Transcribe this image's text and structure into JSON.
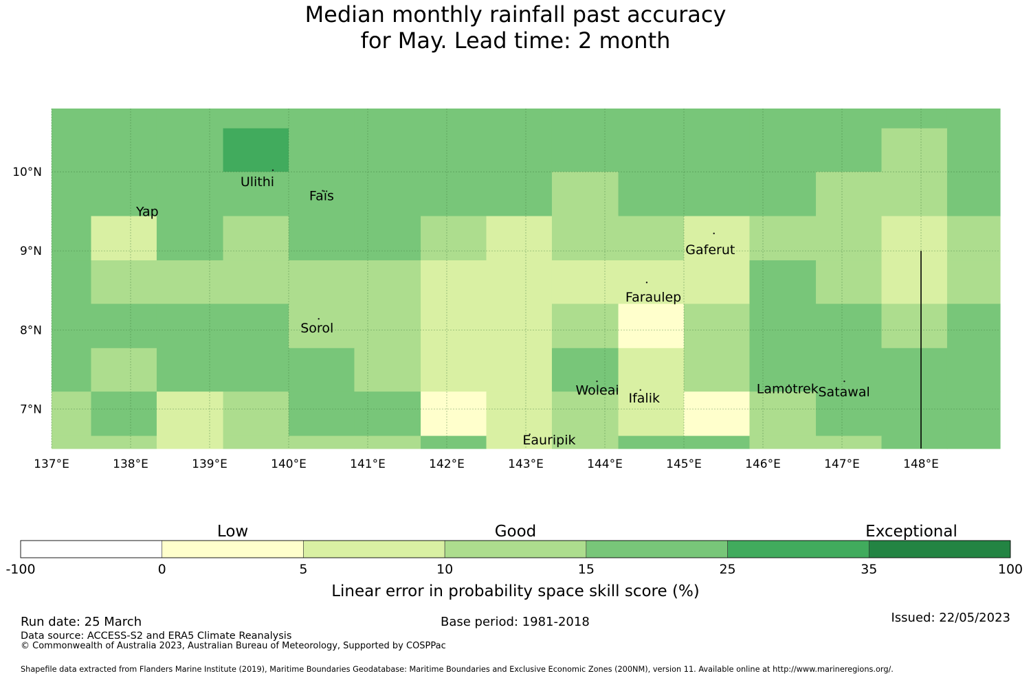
{
  "title": {
    "line1": "Median monthly rainfall past accuracy",
    "line2": "for May. Lead time: 2 month"
  },
  "map": {
    "lon_range": [
      137,
      149
    ],
    "lat_range": [
      6.5,
      10.8
    ],
    "lon_ticks": [
      {
        "value": 137,
        "label": "137°E"
      },
      {
        "value": 138,
        "label": "138°E"
      },
      {
        "value": 139,
        "label": "139°E"
      },
      {
        "value": 140,
        "label": "140°E"
      },
      {
        "value": 141,
        "label": "141°E"
      },
      {
        "value": 142,
        "label": "142°E"
      },
      {
        "value": 143,
        "label": "143°E"
      },
      {
        "value": 144,
        "label": "144°E"
      },
      {
        "value": 145,
        "label": "145°E"
      },
      {
        "value": 146,
        "label": "146°E"
      },
      {
        "value": 147,
        "label": "147°E"
      },
      {
        "value": 148,
        "label": "148°E"
      }
    ],
    "lat_ticks": [
      {
        "value": 10,
        "label": "10°N"
      },
      {
        "value": 9,
        "label": "9°N"
      },
      {
        "value": 8,
        "label": "8°N"
      },
      {
        "value": 7,
        "label": "7°N"
      }
    ],
    "grid_rows_lat": [
      10.8,
      10.55,
      10.0,
      9.44,
      8.88,
      8.33,
      7.77,
      7.22,
      6.66,
      6.5
    ],
    "grid_lon_edges": [
      137.0,
      137.5,
      138.33,
      139.17,
      140.0,
      140.83,
      141.67,
      142.5,
      143.33,
      144.17,
      145.0,
      145.83,
      146.67,
      147.5,
      148.33,
      149.0
    ],
    "cell_classes": [
      [
        4,
        4,
        4,
        4,
        4,
        4,
        4,
        4,
        4,
        4,
        4,
        4,
        4,
        4,
        4
      ],
      [
        4,
        4,
        4,
        5,
        4,
        4,
        4,
        4,
        4,
        4,
        4,
        4,
        4,
        3,
        4
      ],
      [
        4,
        4,
        4,
        4,
        4,
        4,
        4,
        4,
        3,
        4,
        4,
        4,
        3,
        3,
        4
      ],
      [
        4,
        2,
        4,
        3,
        4,
        4,
        3,
        2,
        3,
        3,
        2,
        3,
        3,
        2,
        3
      ],
      [
        4,
        3,
        3,
        3,
        3,
        3,
        2,
        2,
        2,
        2,
        2,
        4,
        3,
        2,
        3
      ],
      [
        4,
        4,
        4,
        4,
        3,
        3,
        2,
        2,
        3,
        1,
        3,
        4,
        4,
        3,
        4
      ],
      [
        4,
        3,
        4,
        4,
        4,
        3,
        2,
        2,
        4,
        2,
        3,
        4,
        4,
        4,
        4
      ],
      [
        3,
        4,
        2,
        3,
        4,
        4,
        1,
        2,
        3,
        2,
        1,
        3,
        4,
        4,
        4
      ],
      [
        3,
        3,
        2,
        3,
        3,
        3,
        4,
        2,
        3,
        4,
        4,
        3,
        3,
        4,
        4
      ]
    ],
    "vertical_marker_lon": 148.0,
    "vertical_marker_lat_range": [
      6.5,
      9.0
    ],
    "islands": [
      {
        "name": "Yap",
        "lon": 138.22,
        "lat": 9.52,
        "label_lon": 138.07,
        "label_lat": 9.44
      },
      {
        "name": "Ulithi",
        "lon": 139.8,
        "lat": 10.02,
        "label_lon": 139.39,
        "label_lat": 9.82
      },
      {
        "name": "Faïs",
        "lon": 140.43,
        "lat": 9.76,
        "label_lon": 140.26,
        "label_lat": 9.64
      },
      {
        "name": "Gaferut",
        "lon": 145.38,
        "lat": 9.22,
        "label_lon": 145.02,
        "label_lat": 8.96
      },
      {
        "name": "Faraulep",
        "lon": 144.53,
        "lat": 8.6,
        "label_lon": 144.26,
        "label_lat": 8.36
      },
      {
        "name": "Sorol",
        "lon": 140.38,
        "lat": 8.14,
        "label_lon": 140.15,
        "label_lat": 7.97
      },
      {
        "name": "Woleai",
        "lon": 143.9,
        "lat": 7.35,
        "label_lon": 143.63,
        "label_lat": 7.18
      },
      {
        "name": "Ifalik",
        "lon": 144.45,
        "lat": 7.24,
        "label_lon": 144.3,
        "label_lat": 7.08
      },
      {
        "name": "Lamotrek",
        "lon": 146.33,
        "lat": 7.3,
        "label_lon": 145.92,
        "label_lat": 7.2
      },
      {
        "name": "Satawal",
        "lon": 147.03,
        "lat": 7.35,
        "label_lon": 146.7,
        "label_lat": 7.16
      },
      {
        "name": "Eauripik",
        "lon": 143.05,
        "lat": 6.68,
        "label_lon": 142.96,
        "label_lat": 6.55
      }
    ]
  },
  "legend": {
    "boundaries": [
      "-100",
      "0",
      "5",
      "10",
      "15",
      "25",
      "35",
      "100"
    ],
    "colors": [
      "#ffffff",
      "#ffffcc",
      "#d9f0a3",
      "#addd8e",
      "#78c679",
      "#41ab5d",
      "#238443"
    ],
    "categories": [
      {
        "label": "Low"
      },
      {
        "label": "Good"
      },
      {
        "label": "Exceptional"
      }
    ],
    "axis_label": "Linear error in probability space skill score (%)"
  },
  "footer": {
    "run_date": "Run date: 25 March",
    "data_source": "Data source: ACCESS-S2 and ERA5 Climate Reanalysis",
    "copyright": "© Commonwealth of Australia 2023, Australian Bureau of Meteorology, Supported by COSPPac",
    "base_period": "Base period: 1981-2018",
    "issued": "Issued: 22/05/2023",
    "shapefile": "Shapefile data extracted from Flanders Marine Institute (2019), Maritime Boundaries Geodatabase: Maritime Boundaries and Exclusive Economic Zones (200NM), version 11. Available online at http://www.marineregions.org/."
  }
}
